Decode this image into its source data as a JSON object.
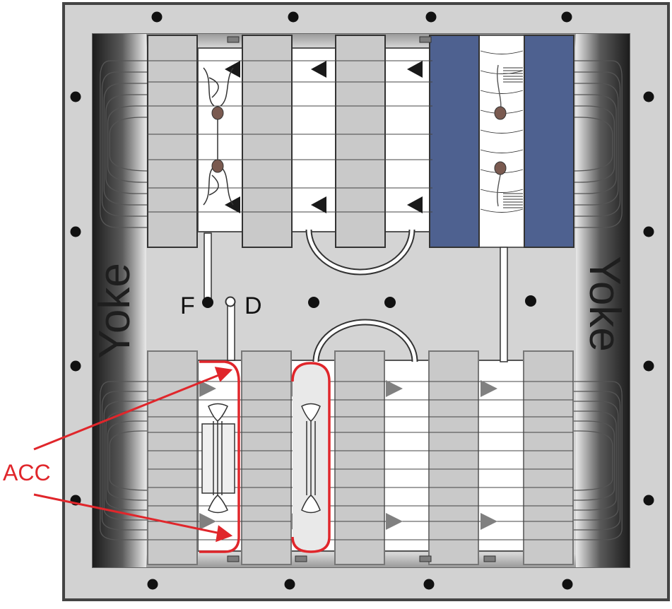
{
  "labels": {
    "yoke_left": "Yoke",
    "yoke_right": "Yoke",
    "f_label": "F",
    "d_label": "D",
    "acc_label": "ACC"
  },
  "colors": {
    "frame_border": "#444444",
    "frame_fill": "#d0d0d0",
    "yoke_dark": "#202020",
    "bar_fill": "#c9c9c9",
    "magnet_blue": "#4e6190",
    "acc_red": "#e0262b",
    "arrow_dark": "#1a1a1a",
    "arrow_gray": "#808080",
    "field_line": "#5a5a5a"
  }
}
